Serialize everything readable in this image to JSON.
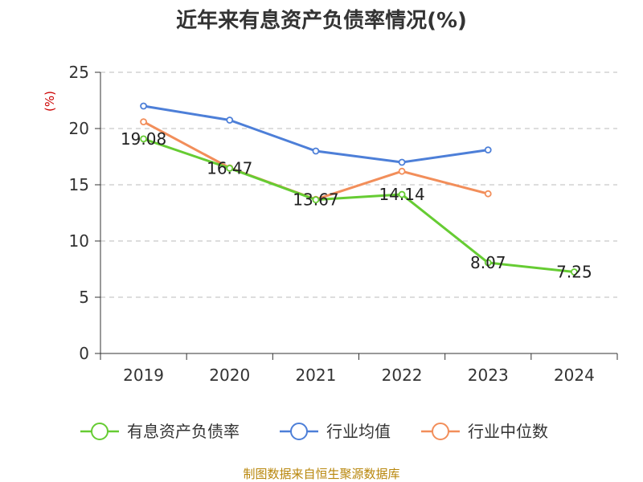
{
  "chart_data": {
    "type": "line",
    "title": "近年来有息资产负债率情况(%)",
    "ylabel": "(%)",
    "categories": [
      "2019",
      "2020",
      "2021",
      "2022",
      "2023",
      "2024"
    ],
    "ylim": [
      0,
      25
    ],
    "yticks": [
      0,
      5,
      10,
      15,
      20,
      25
    ],
    "grid": true,
    "legend_position": "bottom",
    "series": [
      {
        "name": "有息资产负债率",
        "color": "#66cc33",
        "values": [
          19.08,
          16.47,
          13.67,
          14.14,
          8.07,
          7.25
        ],
        "show_labels": true
      },
      {
        "name": "行业均值",
        "color": "#4d7fd8",
        "values": [
          22.0,
          20.75,
          18.0,
          17.0,
          18.1,
          null
        ],
        "show_labels": false
      },
      {
        "name": "行业中位数",
        "color": "#f28e5a",
        "values": [
          20.6,
          16.5,
          13.7,
          16.2,
          14.2,
          null
        ],
        "show_labels": false
      }
    ]
  },
  "footer": "制图数据来自恒生聚源数据库"
}
